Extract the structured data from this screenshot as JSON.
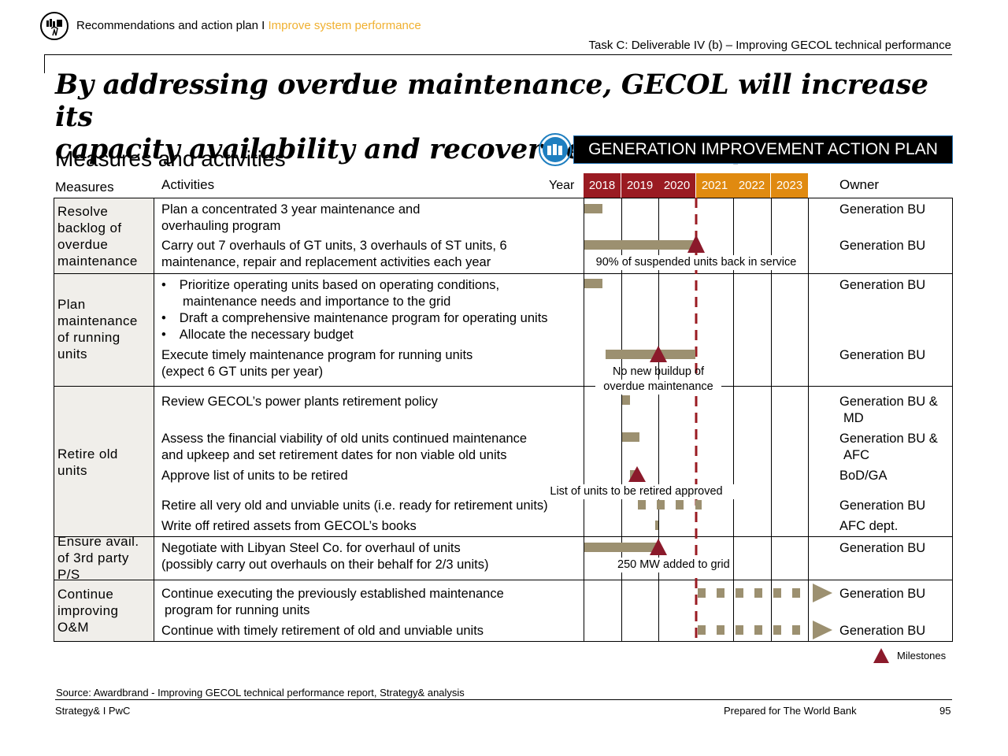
{
  "header": {
    "breadcrumb_section": "Recommendations and action plan",
    "breadcrumb_separator": "I",
    "breadcrumb_topic": "Improve system performance",
    "task": "Task C: Deliverable IV (b) – Improving GECOL technical performance"
  },
  "title": {
    "line1": "By addressing overdue maintenance, GECOL will increase its",
    "line2": "capacity availability and recover several “suspended” units"
  },
  "subtitle": "Measures and activities",
  "plan_banner": "GENERATION IMPROVEMENT ACTION PLAN",
  "table": {
    "col_measures": "Measures",
    "col_activities": "Activities",
    "col_year": "Year",
    "col_owner": "Owner",
    "years": [
      "2018",
      "2019",
      "2020",
      "2021",
      "2022",
      "2023"
    ],
    "colors": {
      "past_year": "#9a1b22",
      "future_year": "#e08a10",
      "bar": "#9c9070",
      "milestone": "#8b1a2b"
    },
    "measures": [
      {
        "label_lines": [
          "Resolve",
          "backlog of",
          "overdue",
          "maintenance"
        ]
      },
      {
        "label_lines": [
          "Plan",
          "maintenance",
          "of running",
          "units"
        ]
      },
      {
        "label_lines": [
          "Retire old",
          "units"
        ]
      },
      {
        "label_lines": [
          "Ensure avail.",
          "of 3rd party",
          "P/S"
        ]
      },
      {
        "label_lines": [
          "Continue",
          "improving",
          "O&M"
        ]
      }
    ],
    "activities": [
      {
        "lines": [
          "Plan a concentrated 3 year maintenance and",
          "overhauling program"
        ],
        "owner": [
          "Generation BU"
        ]
      },
      {
        "lines": [
          "Carry out 7 overhauls of GT units, 3 overhauls of ST units, 6",
          "maintenance, repair and replacement activities each year"
        ],
        "owner": [
          "Generation BU"
        ]
      },
      {
        "bullets": [
          "Prioritize operating units based on operating conditions,",
          "maintenance needs and importance to the grid",
          "Draft a comprehensive maintenance program for operating units",
          "Allocate the necessary budget"
        ],
        "bullet_char": "•",
        "owner": [
          "Generation BU"
        ]
      },
      {
        "lines": [
          "Execute timely maintenance program for running units",
          "(expect 6 GT units per year)"
        ],
        "owner": [
          "Generation BU"
        ]
      },
      {
        "lines": [
          "Review GECOL’s power plants retirement policy"
        ],
        "owner": [
          "Generation BU &",
          "MD"
        ]
      },
      {
        "lines": [
          "Assess the financial viability of old units continued maintenance",
          "and upkeep and set retirement dates for non viable old units"
        ],
        "owner": [
          "Generation BU &",
          "AFC"
        ]
      },
      {
        "lines": [
          "Approve list of units to be retired"
        ],
        "owner": [
          "BoD/GA"
        ]
      },
      {
        "lines": [
          "Retire all very old and unviable units (i.e. ready for retirement units)"
        ],
        "owner": [
          "Generation BU"
        ]
      },
      {
        "lines": [
          "Write off retired assets from GECOL’s books"
        ],
        "owner": [
          "AFC dept."
        ]
      },
      {
        "lines": [
          "Negotiate with Libyan Steel Co. for overhaul of units",
          "(possibly carry out overhauls on their behalf for 2/3 units)"
        ],
        "owner": [
          "Generation BU"
        ]
      },
      {
        "lines": [
          "Continue executing the previously established maintenance",
          "program for running units"
        ],
        "owner": [
          "Generation BU"
        ]
      },
      {
        "lines": [
          "Continue with timely retirement of old and unviable units"
        ],
        "owner": [
          "Generation BU"
        ]
      }
    ],
    "notes": {
      "suspended": "90% of suspended units back in service",
      "buildup_1": "No new buildup of",
      "buildup_2": "overdue maintenance",
      "retired": "List of units to be retired approved",
      "mw_1": "250 MW",
      "mw_2": "added to grid"
    }
  },
  "legend": {
    "milestones": "Milestones"
  },
  "source": "Source: Awardbrand - Improving GECOL technical performance report, Strategy& analysis",
  "footer": {
    "left": "Strategy& I PwC",
    "center": "Prepared for The World Bank",
    "page": "95"
  }
}
